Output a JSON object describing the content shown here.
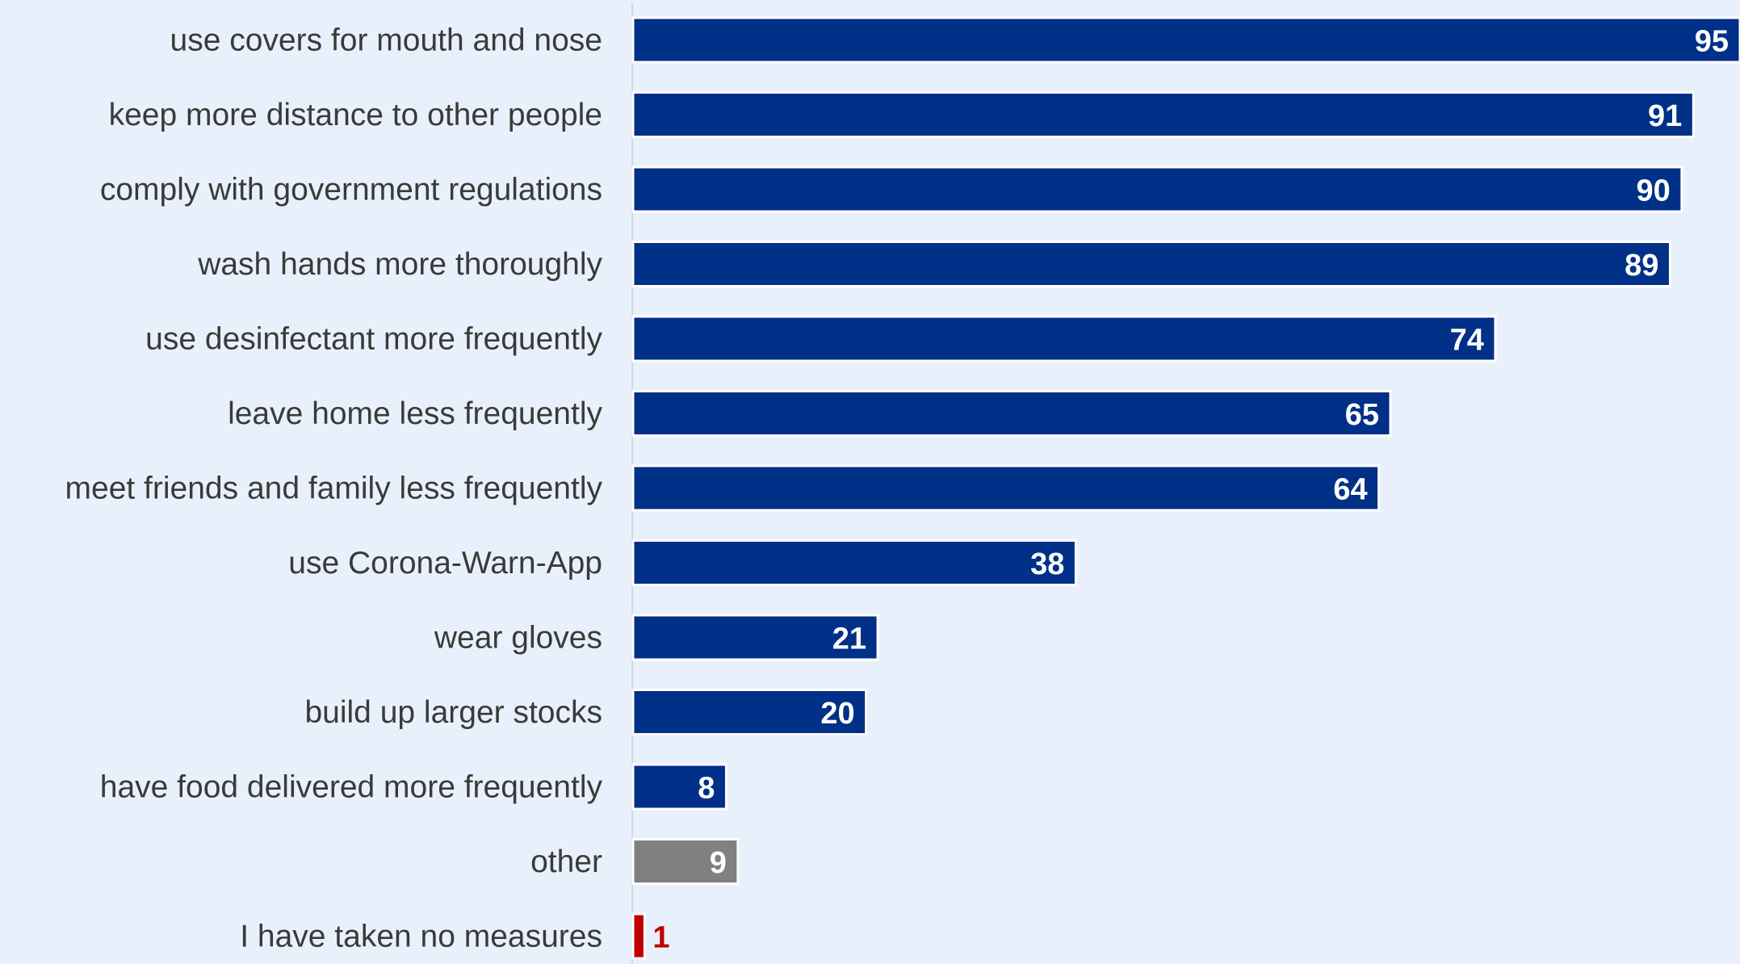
{
  "chart_data": {
    "type": "bar",
    "orientation": "horizontal",
    "categories": [
      "use covers for mouth and nose",
      "keep more distance to other people",
      "comply with government regulations",
      "wash hands more thoroughly",
      "use desinfectant more frequently",
      "leave home less frequently",
      "meet friends and family less frequently",
      "use Corona-Warn-App",
      "wear gloves",
      "build up larger stocks",
      "have food delivered more frequently",
      "other",
      "I have taken no measures"
    ],
    "values": [
      95,
      91,
      90,
      89,
      74,
      65,
      64,
      38,
      21,
      20,
      8,
      9,
      1
    ],
    "value_labels": [
      "95",
      "91",
      "90",
      "89",
      "74",
      "65",
      "64",
      "38",
      "21",
      "20",
      "8",
      "9",
      "1"
    ],
    "bar_colors": [
      "#003087",
      "#003087",
      "#003087",
      "#003087",
      "#003087",
      "#003087",
      "#003087",
      "#003087",
      "#003087",
      "#003087",
      "#003087",
      "#808080",
      "#c00000"
    ],
    "value_label_colors": [
      "#ffffff",
      "#ffffff",
      "#ffffff",
      "#ffffff",
      "#ffffff",
      "#ffffff",
      "#ffffff",
      "#ffffff",
      "#ffffff",
      "#ffffff",
      "#ffffff",
      "#ffffff",
      "#c00000"
    ],
    "title": "",
    "xlabel": "",
    "ylabel": "",
    "xlim": [
      0,
      95
    ],
    "grid": false,
    "legend": "none",
    "colors": {
      "background": "#e8f1fb",
      "primary": "#003087",
      "other": "#808080",
      "none": "#c00000"
    }
  }
}
